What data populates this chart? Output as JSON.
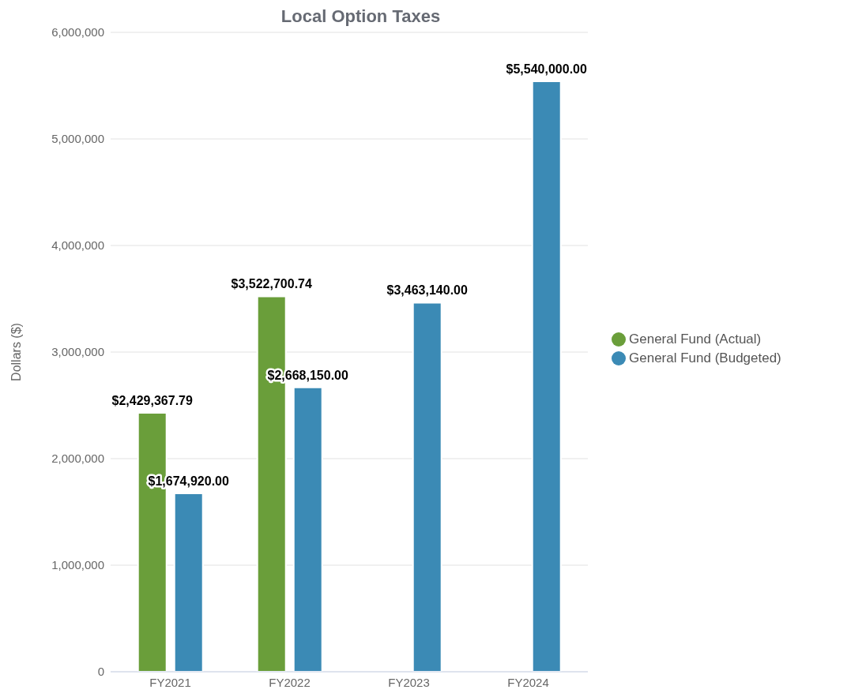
{
  "chart_data": {
    "type": "bar",
    "title": "Local Option Taxes",
    "ylabel": "Dollars ($)",
    "categories": [
      "FY2021",
      "FY2022",
      "FY2023",
      "FY2024"
    ],
    "series": [
      {
        "name": "General Fund (Actual)",
        "color": "#6a9e3a",
        "values": [
          2429367.79,
          3522700.74,
          null,
          null
        ],
        "value_labels": [
          "$2,429,367.79",
          "$3,522,700.74",
          null,
          null
        ]
      },
      {
        "name": "General Fund (Budgeted)",
        "color": "#3b8ab5",
        "values": [
          1674920,
          2668150,
          3463140,
          5540000
        ],
        "value_labels": [
          "$1,674,920.00",
          "$2,668,150.00",
          "$3,463,140.00",
          "$5,540,000.00"
        ]
      }
    ],
    "ylim": [
      0,
      6000000
    ],
    "yticks": [
      0,
      {
        "value": 1000000,
        "label": "1,000,000"
      },
      {
        "value": 2000000,
        "label": "2,000,000"
      },
      {
        "value": 3000000,
        "label": "3,000,000"
      },
      {
        "value": 4000000,
        "label": "4,000,000"
      },
      {
        "value": 5000000,
        "label": "5,000,000"
      },
      {
        "value": 6000000,
        "label": "6,000,000"
      }
    ],
    "grid": "y",
    "legend": "right"
  }
}
